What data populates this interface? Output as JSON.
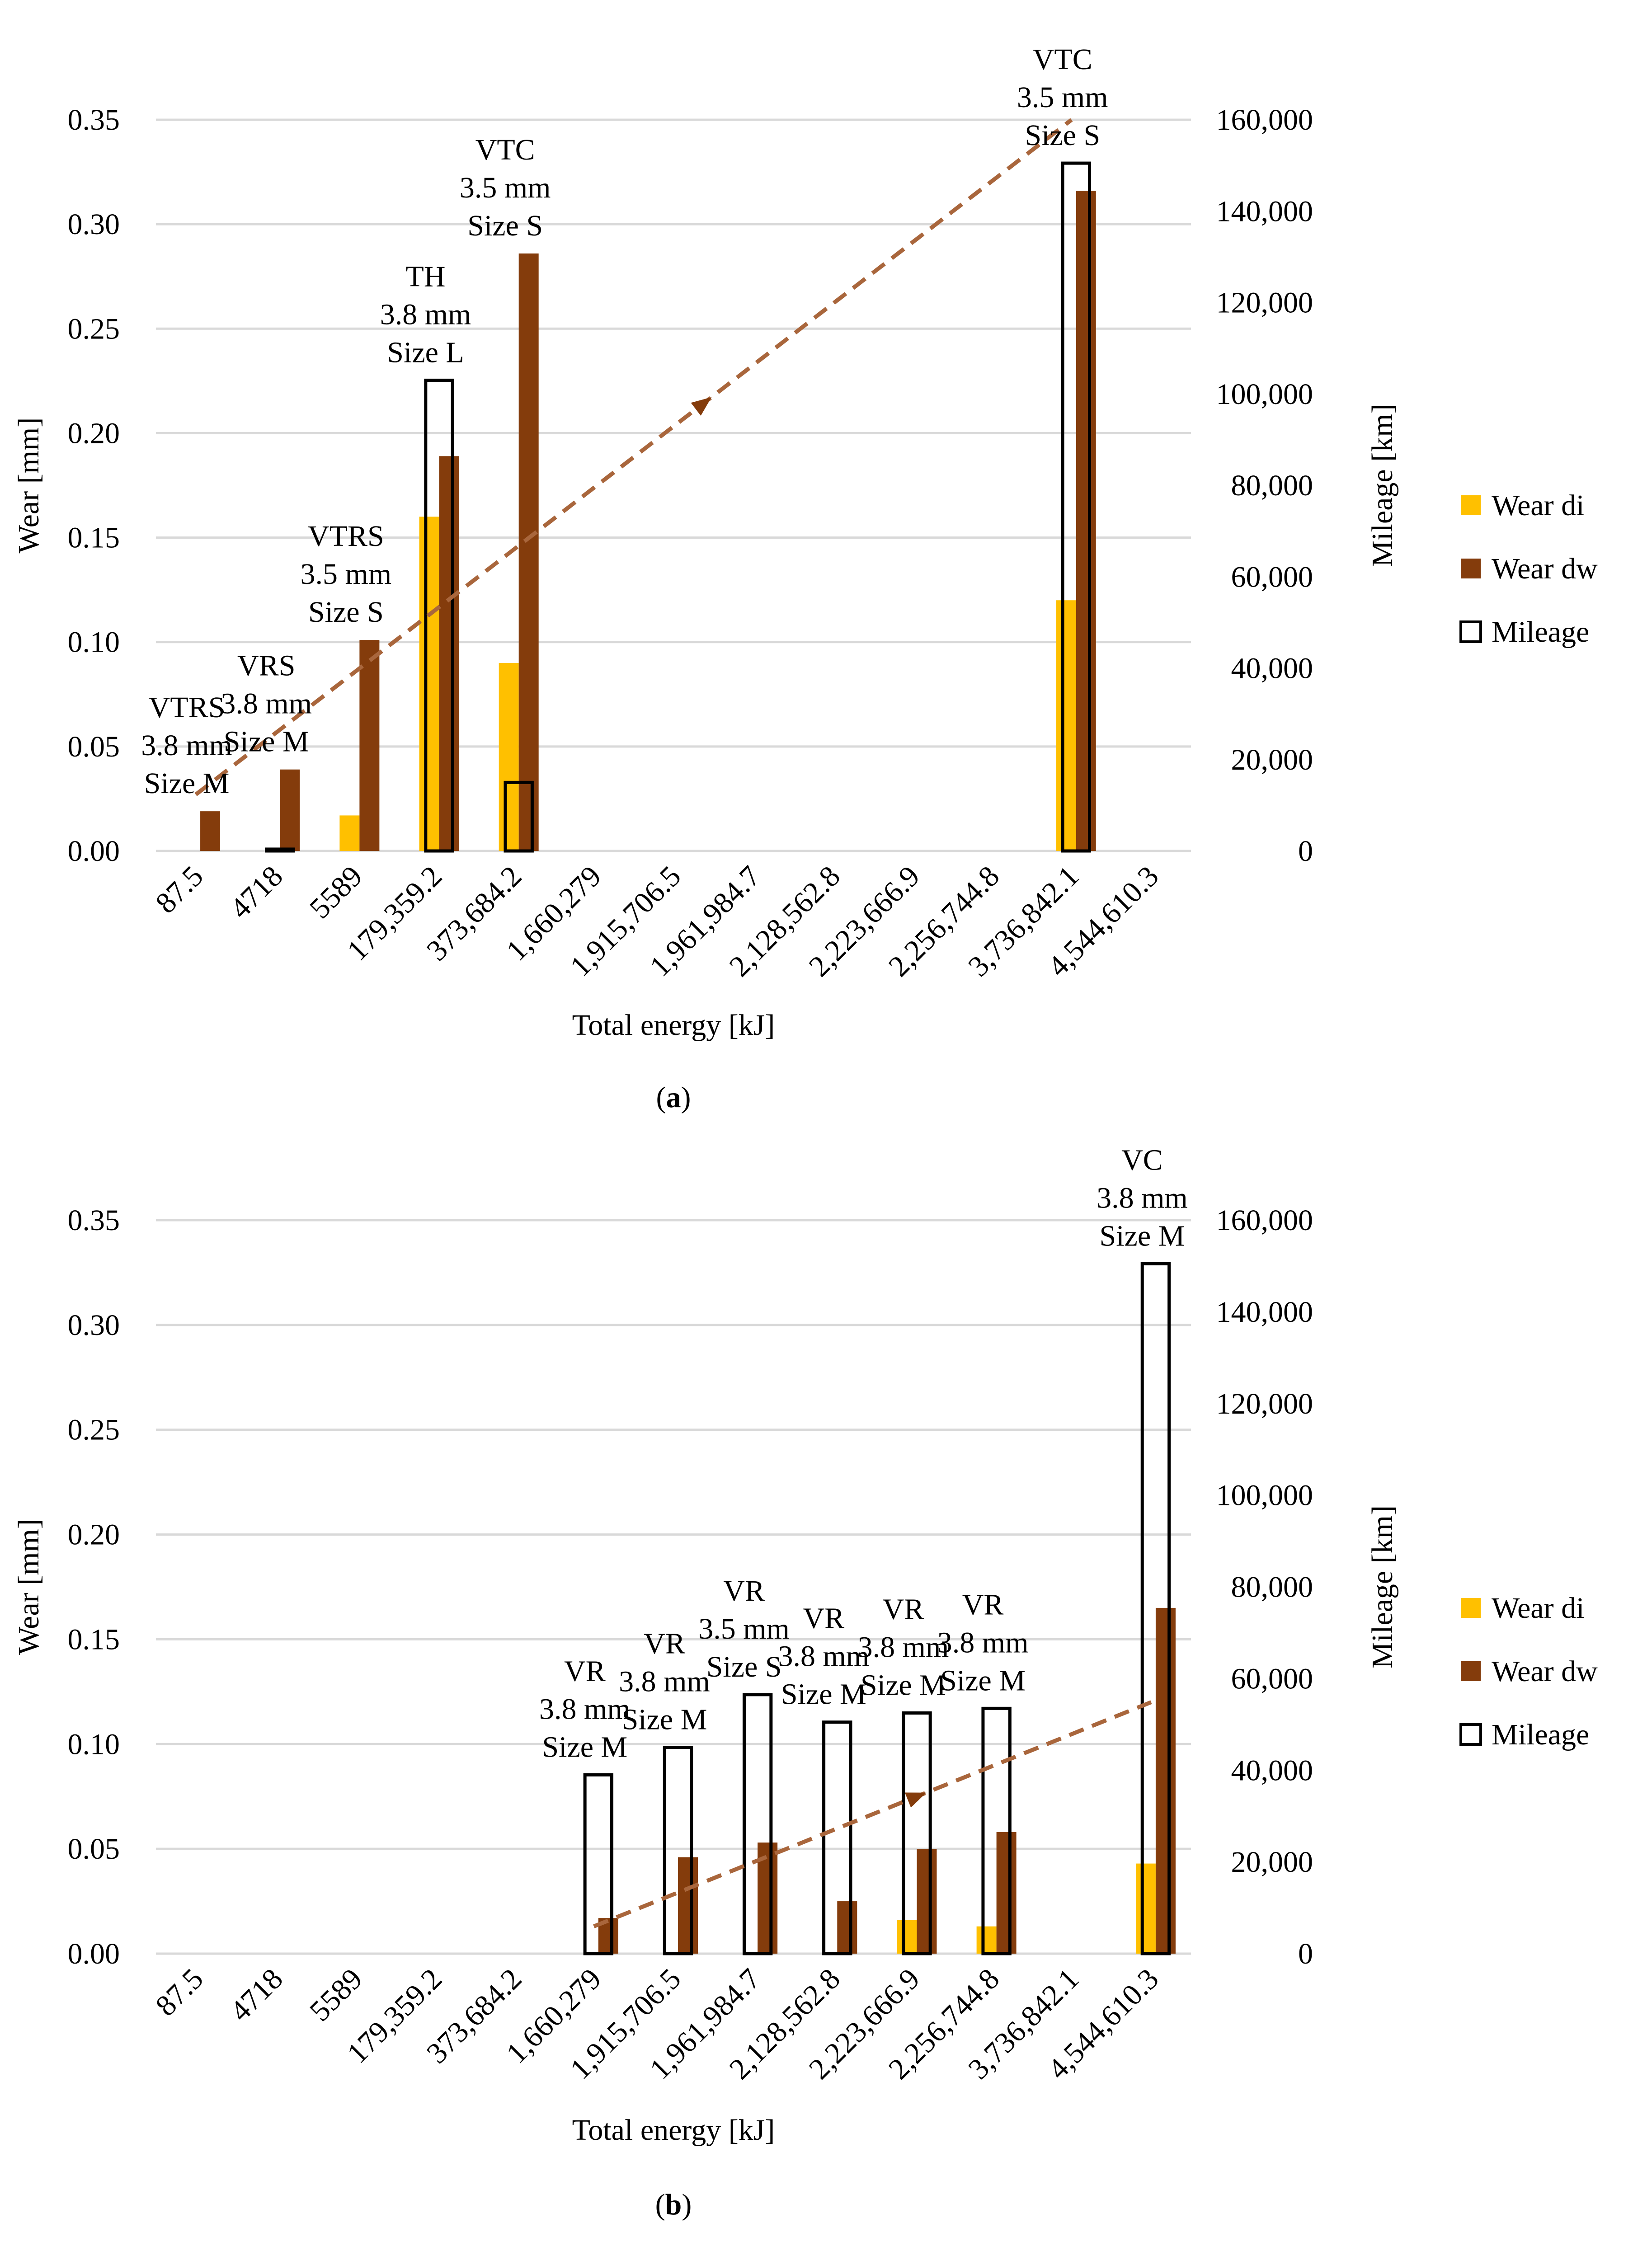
{
  "colors": {
    "wear_di": "#FFC000",
    "wear_dw": "#843C0C",
    "mileage_stroke": "#000000",
    "trend": "#A9663C",
    "grid": "#D9D9D9"
  },
  "chart_data": [
    {
      "type": "bar",
      "panel_label_prefix": "(",
      "panel_label_letter": "a",
      "panel_label_suffix": ")",
      "categories": [
        "87.5",
        "4718",
        "5589",
        "179,359.2",
        "373,684.2",
        "1,660,279",
        "1,915,706.5",
        "1,961,984.7",
        "2,128,562.8",
        "2,223,666.9",
        "2,256,744.8",
        "3,736,842.1",
        "4,544,610.3"
      ],
      "xlabel": "Total energy [kJ]",
      "ylabel_left": "Wear [mm]",
      "ylabel_right": "Mileage [km]",
      "ylim_left": [
        0,
        0.35
      ],
      "ylim_right": [
        0,
        160000
      ],
      "yticks_left": [
        "0.00",
        "0.05",
        "0.10",
        "0.15",
        "0.20",
        "0.25",
        "0.30",
        "0.35"
      ],
      "yticks_right": [
        "0",
        "20,000",
        "40,000",
        "60,000",
        "80,000",
        "100,000",
        "120,000",
        "140,000",
        "160,000"
      ],
      "series": [
        {
          "name": "Wear di",
          "axis": "left",
          "values": [
            0,
            0,
            0.017,
            0.16,
            0.09,
            0,
            0,
            0,
            0,
            0,
            0,
            0.12,
            0
          ]
        },
        {
          "name": "Wear dw",
          "axis": "left",
          "values": [
            0.019,
            0.039,
            0.101,
            0.189,
            0.286,
            0,
            0,
            0,
            0,
            0,
            0,
            0.316,
            0
          ]
        },
        {
          "name": "Mileage",
          "axis": "right",
          "values": [
            0,
            400,
            0,
            103000,
            15000,
            0,
            0,
            0,
            0,
            0,
            0,
            150500,
            0
          ]
        }
      ],
      "legend": [
        "Wear di",
        "Wear dw",
        "Mileage"
      ],
      "legend_position": "right",
      "trendline": {
        "from": {
          "category_index": 0,
          "left_value": 0.027
        },
        "to": {
          "category_index": 11,
          "left_value": 0.35
        }
      },
      "annotations": [
        {
          "category_index": 0,
          "lines": [
            "VTRS",
            "3.8 mm",
            "Size M"
          ]
        },
        {
          "category_index": 1,
          "lines": [
            "VRS",
            "3.8 mm",
            "Size M"
          ]
        },
        {
          "category_index": 2,
          "lines": [
            "VTRS",
            "3.5 mm",
            "Size S"
          ]
        },
        {
          "category_index": 3,
          "lines": [
            "TH",
            "3.8 mm",
            "Size L"
          ]
        },
        {
          "category_index": 4,
          "lines": [
            "VTC",
            "3.5 mm",
            "Size S"
          ]
        },
        {
          "category_index": 11,
          "lines": [
            "VTC",
            "3.5 mm",
            "Size S"
          ]
        }
      ]
    },
    {
      "type": "bar",
      "panel_label_prefix": "(",
      "panel_label_letter": "b",
      "panel_label_suffix": ")",
      "categories": [
        "87.5",
        "4718",
        "5589",
        "179,359.2",
        "373,684.2",
        "1,660,279",
        "1,915,706.5",
        "1,961,984.7",
        "2,128,562.8",
        "2,223,666.9",
        "2,256,744.8",
        "3,736,842.1",
        "4,544,610.3"
      ],
      "xlabel": "Total energy [kJ]",
      "ylabel_left": "Wear [mm]",
      "ylabel_right": "Mileage [km]",
      "ylim_left": [
        0,
        0.35
      ],
      "ylim_right": [
        0,
        160000
      ],
      "yticks_left": [
        "0.00",
        "0.05",
        "0.10",
        "0.15",
        "0.20",
        "0.25",
        "0.30",
        "0.35"
      ],
      "yticks_right": [
        "0",
        "20,000",
        "40,000",
        "60,000",
        "80,000",
        "100,000",
        "120,000",
        "140,000",
        "160,000"
      ],
      "series": [
        {
          "name": "Wear di",
          "axis": "left",
          "values": [
            0,
            0,
            0,
            0,
            0,
            0,
            0,
            0,
            0,
            0.016,
            0.013,
            0,
            0.043
          ]
        },
        {
          "name": "Wear dw",
          "axis": "left",
          "values": [
            0,
            0,
            0,
            0,
            0,
            0.017,
            0.046,
            0.053,
            0.025,
            0.05,
            0.058,
            0,
            0.165
          ]
        },
        {
          "name": "Mileage",
          "axis": "right",
          "values": [
            0,
            0,
            0,
            0,
            0,
            39000,
            45000,
            56500,
            50500,
            52500,
            53500,
            0,
            150500
          ]
        }
      ],
      "legend": [
        "Wear di",
        "Wear dw",
        "Mileage"
      ],
      "legend_position": "right",
      "trendline": {
        "from": {
          "category_index": 5,
          "left_value": 0.013
        },
        "to": {
          "category_index": 12,
          "left_value": 0.12
        }
      },
      "annotations": [
        {
          "category_index": 5,
          "lines": [
            "VR",
            "3.8 mm",
            "Size M"
          ]
        },
        {
          "category_index": 6,
          "lines": [
            "VR",
            "3.8 mm",
            "Size M"
          ]
        },
        {
          "category_index": 7,
          "lines": [
            "VR",
            "3.5 mm",
            "Size S"
          ]
        },
        {
          "category_index": 8,
          "lines": [
            "VR",
            "3.8 mm",
            "Size M"
          ]
        },
        {
          "category_index": 9,
          "lines": [
            "VR",
            "3.8 mm",
            "Size M"
          ]
        },
        {
          "category_index": 10,
          "lines": [
            "VR",
            "3.8 mm",
            "Size M"
          ]
        },
        {
          "category_index": 12,
          "lines": [
            "VC",
            "3.8 mm",
            "Size M"
          ]
        }
      ]
    }
  ]
}
